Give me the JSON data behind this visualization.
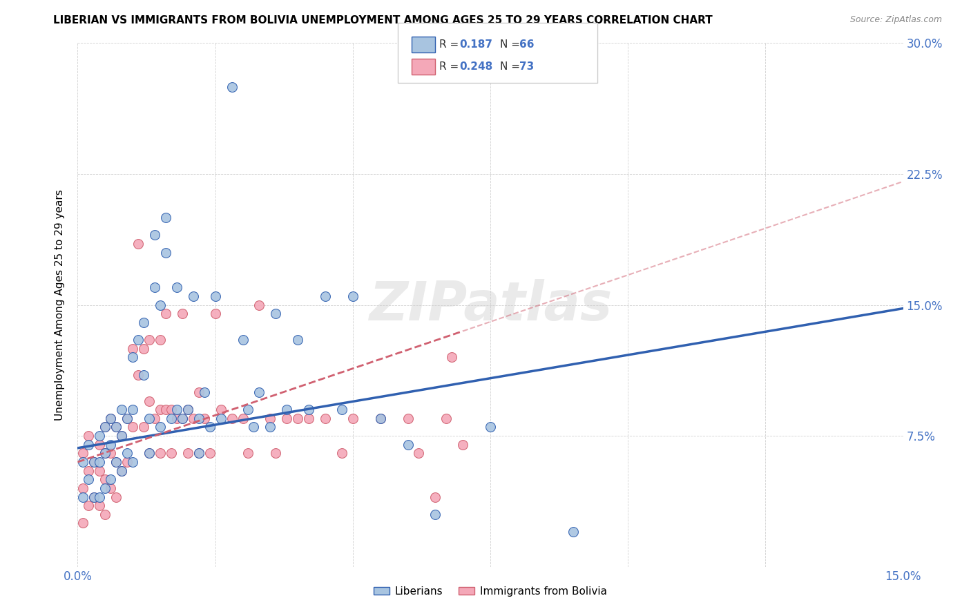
{
  "title": "LIBERIAN VS IMMIGRANTS FROM BOLIVIA UNEMPLOYMENT AMONG AGES 25 TO 29 YEARS CORRELATION CHART",
  "source": "Source: ZipAtlas.com",
  "ylabel": "Unemployment Among Ages 25 to 29 years",
  "xlim": [
    0.0,
    0.15
  ],
  "ylim": [
    0.0,
    0.3
  ],
  "xticks": [
    0.0,
    0.025,
    0.05,
    0.075,
    0.1,
    0.125,
    0.15
  ],
  "xticklabels": [
    "0.0%",
    "",
    "",
    "",
    "",
    "",
    "15.0%"
  ],
  "yticks": [
    0.0,
    0.075,
    0.15,
    0.225,
    0.3
  ],
  "yticklabels": [
    "",
    "7.5%",
    "15.0%",
    "22.5%",
    "30.0%"
  ],
  "liberian_color": "#a8c4e0",
  "bolivia_color": "#f4a8b8",
  "liberian_line_color": "#3060b0",
  "bolivia_line_color": "#d06070",
  "watermark": "ZIPatlas",
  "liberian_scatter_x": [
    0.001,
    0.001,
    0.002,
    0.002,
    0.003,
    0.003,
    0.004,
    0.004,
    0.004,
    0.005,
    0.005,
    0.005,
    0.006,
    0.006,
    0.006,
    0.007,
    0.007,
    0.008,
    0.008,
    0.008,
    0.009,
    0.009,
    0.01,
    0.01,
    0.01,
    0.011,
    0.012,
    0.012,
    0.013,
    0.013,
    0.014,
    0.014,
    0.015,
    0.015,
    0.016,
    0.016,
    0.017,
    0.018,
    0.018,
    0.019,
    0.02,
    0.021,
    0.022,
    0.022,
    0.023,
    0.024,
    0.025,
    0.026,
    0.028,
    0.03,
    0.031,
    0.032,
    0.033,
    0.035,
    0.036,
    0.038,
    0.04,
    0.042,
    0.045,
    0.048,
    0.05,
    0.055,
    0.06,
    0.065,
    0.075,
    0.09
  ],
  "liberian_scatter_y": [
    0.06,
    0.04,
    0.07,
    0.05,
    0.06,
    0.04,
    0.075,
    0.06,
    0.04,
    0.08,
    0.065,
    0.045,
    0.085,
    0.07,
    0.05,
    0.08,
    0.06,
    0.09,
    0.075,
    0.055,
    0.085,
    0.065,
    0.12,
    0.09,
    0.06,
    0.13,
    0.14,
    0.11,
    0.085,
    0.065,
    0.19,
    0.16,
    0.15,
    0.08,
    0.2,
    0.18,
    0.085,
    0.16,
    0.09,
    0.085,
    0.09,
    0.155,
    0.085,
    0.065,
    0.1,
    0.08,
    0.155,
    0.085,
    0.275,
    0.13,
    0.09,
    0.08,
    0.1,
    0.08,
    0.145,
    0.09,
    0.13,
    0.09,
    0.155,
    0.09,
    0.155,
    0.085,
    0.07,
    0.03,
    0.08,
    0.02
  ],
  "bolivia_scatter_x": [
    0.001,
    0.001,
    0.001,
    0.002,
    0.002,
    0.002,
    0.003,
    0.003,
    0.004,
    0.004,
    0.004,
    0.005,
    0.005,
    0.005,
    0.005,
    0.006,
    0.006,
    0.006,
    0.007,
    0.007,
    0.007,
    0.008,
    0.008,
    0.009,
    0.009,
    0.01,
    0.01,
    0.011,
    0.011,
    0.012,
    0.012,
    0.013,
    0.013,
    0.013,
    0.014,
    0.015,
    0.015,
    0.015,
    0.016,
    0.016,
    0.017,
    0.017,
    0.018,
    0.019,
    0.019,
    0.02,
    0.02,
    0.021,
    0.022,
    0.022,
    0.023,
    0.024,
    0.025,
    0.026,
    0.028,
    0.03,
    0.031,
    0.033,
    0.035,
    0.036,
    0.038,
    0.04,
    0.042,
    0.045,
    0.048,
    0.05,
    0.055,
    0.06,
    0.062,
    0.065,
    0.067,
    0.068,
    0.07
  ],
  "bolivia_scatter_y": [
    0.065,
    0.045,
    0.025,
    0.075,
    0.055,
    0.035,
    0.06,
    0.04,
    0.07,
    0.055,
    0.035,
    0.08,
    0.065,
    0.05,
    0.03,
    0.085,
    0.065,
    0.045,
    0.08,
    0.06,
    0.04,
    0.075,
    0.055,
    0.085,
    0.06,
    0.125,
    0.08,
    0.185,
    0.11,
    0.125,
    0.08,
    0.13,
    0.095,
    0.065,
    0.085,
    0.13,
    0.09,
    0.065,
    0.145,
    0.09,
    0.09,
    0.065,
    0.085,
    0.145,
    0.085,
    0.09,
    0.065,
    0.085,
    0.1,
    0.065,
    0.085,
    0.065,
    0.145,
    0.09,
    0.085,
    0.085,
    0.065,
    0.15,
    0.085,
    0.065,
    0.085,
    0.085,
    0.085,
    0.085,
    0.065,
    0.085,
    0.085,
    0.085,
    0.065,
    0.04,
    0.085,
    0.12,
    0.07
  ],
  "liberian_line_x": [
    0.0,
    0.15
  ],
  "liberian_line_y": [
    0.068,
    0.148
  ],
  "bolivia_line_x": [
    0.0,
    0.07
  ],
  "bolivia_line_y": [
    0.06,
    0.135
  ]
}
